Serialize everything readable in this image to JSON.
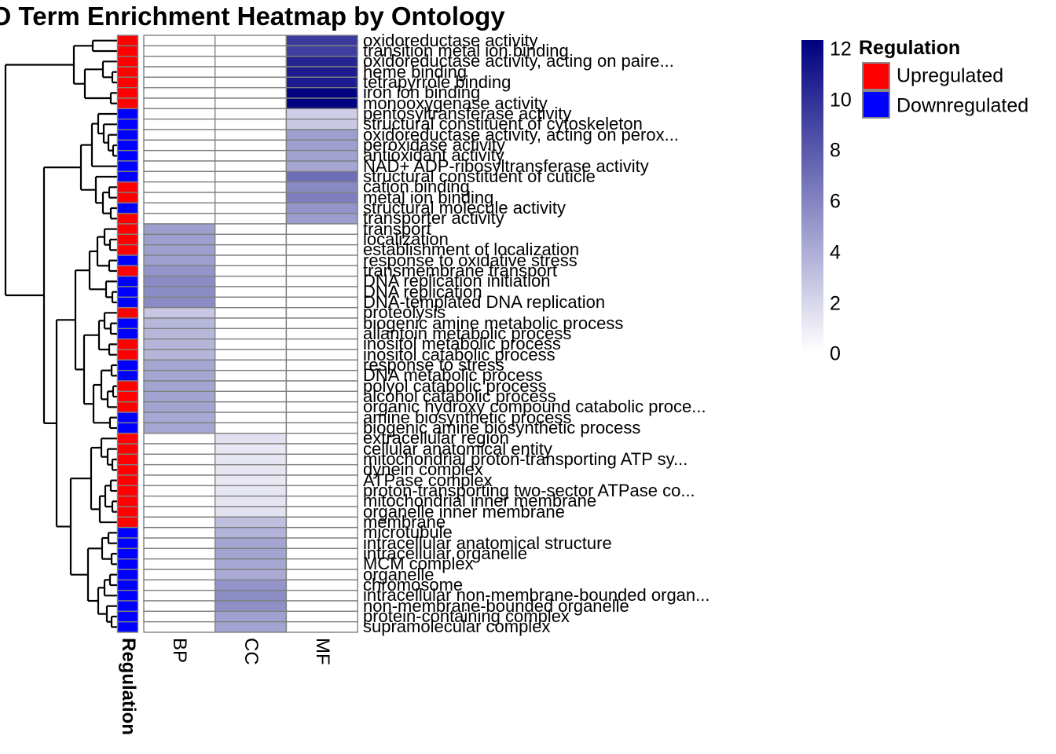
{
  "title": "GO Term Enrichment Heatmap by Ontology",
  "colors": {
    "heat_low": "#FFFFFF",
    "heat_high": "#000080",
    "upregulated": "#FF0000",
    "downregulated": "#0000FF",
    "cell_border": "#808080",
    "dendrogram_line": "#000000"
  },
  "annotation_column_label": "Regulation",
  "legend": {
    "colorbar_ticks": [
      12,
      10,
      8,
      6,
      4,
      2,
      0
    ],
    "colorbar_max": 12.35,
    "regulation": {
      "title": "Regulation",
      "items": [
        {
          "label": "Upregulated",
          "color": "#FF0000"
        },
        {
          "label": "Downregulated",
          "color": "#0000FF"
        }
      ]
    }
  },
  "chart_data": {
    "type": "heatmap",
    "title": "GO Term Enrichment Heatmap by Ontology",
    "columns": [
      "BP",
      "CC",
      "MF"
    ],
    "value_scale": {
      "range": [
        0,
        12.35
      ],
      "low_color": "#FFFFFF",
      "high_color": "#000080"
    },
    "legend_position": "right",
    "rows": [
      {
        "term": "oxidoreductase activity",
        "regulation": "Upregulated",
        "ontology": "MF",
        "value": 9.5
      },
      {
        "term": "transition metal ion binding",
        "regulation": "Upregulated",
        "ontology": "MF",
        "value": 9.3
      },
      {
        "term": "oxidoreductase activity, acting on paire...",
        "regulation": "Upregulated",
        "ontology": "MF",
        "value": 10.6
      },
      {
        "term": "heme binding",
        "regulation": "Upregulated",
        "ontology": "MF",
        "value": 11.0
      },
      {
        "term": "tetrapyrrole binding",
        "regulation": "Upregulated",
        "ontology": "MF",
        "value": 11.0
      },
      {
        "term": "iron ion binding",
        "regulation": "Upregulated",
        "ontology": "MF",
        "value": 12.2
      },
      {
        "term": "monooxygenase activity",
        "regulation": "Upregulated",
        "ontology": "MF",
        "value": 12.2
      },
      {
        "term": "pentosyltransferase activity",
        "regulation": "Downregulated",
        "ontology": "MF",
        "value": 2.4
      },
      {
        "term": "structural constituent of cytoskeleton",
        "regulation": "Downregulated",
        "ontology": "MF",
        "value": 2.6
      },
      {
        "term": "oxidoreductase activity, acting on perox...",
        "regulation": "Downregulated",
        "ontology": "MF",
        "value": 4.7
      },
      {
        "term": "peroxidase activity",
        "regulation": "Downregulated",
        "ontology": "MF",
        "value": 4.7
      },
      {
        "term": "antioxidant activity",
        "regulation": "Downregulated",
        "ontology": "MF",
        "value": 4.5
      },
      {
        "term": "NAD+ ADP-ribosyltransferase activity",
        "regulation": "Downregulated",
        "ontology": "MF",
        "value": 4.3
      },
      {
        "term": "structural constituent of cuticle",
        "regulation": "Downregulated",
        "ontology": "MF",
        "value": 7.0
      },
      {
        "term": "cation binding",
        "regulation": "Upregulated",
        "ontology": "MF",
        "value": 5.7
      },
      {
        "term": "metal ion binding",
        "regulation": "Upregulated",
        "ontology": "MF",
        "value": 6.2
      },
      {
        "term": "structural molecule activity",
        "regulation": "Downregulated",
        "ontology": "MF",
        "value": 5.2
      },
      {
        "term": "transporter activity",
        "regulation": "Upregulated",
        "ontology": "MF",
        "value": 4.8
      },
      {
        "term": "transport",
        "regulation": "Upregulated",
        "ontology": "BP",
        "value": 4.7
      },
      {
        "term": "localization",
        "regulation": "Upregulated",
        "ontology": "BP",
        "value": 4.7
      },
      {
        "term": "establishment of localization",
        "regulation": "Upregulated",
        "ontology": "BP",
        "value": 4.7
      },
      {
        "term": "response to oxidative stress",
        "regulation": "Downregulated",
        "ontology": "BP",
        "value": 4.7
      },
      {
        "term": "transmembrane transport",
        "regulation": "Upregulated",
        "ontology": "BP",
        "value": 5.2
      },
      {
        "term": "DNA replication initiation",
        "regulation": "Downregulated",
        "ontology": "BP",
        "value": 5.6
      },
      {
        "term": "DNA replication",
        "regulation": "Downregulated",
        "ontology": "BP",
        "value": 5.6
      },
      {
        "term": "DNA-templated DNA replication",
        "regulation": "Downregulated",
        "ontology": "BP",
        "value": 5.6
      },
      {
        "term": "proteolysis",
        "regulation": "Upregulated",
        "ontology": "BP",
        "value": 2.7
      },
      {
        "term": "biogenic amine metabolic process",
        "regulation": "Downregulated",
        "ontology": "BP",
        "value": 3.5
      },
      {
        "term": "allantoin metabolic process",
        "regulation": "Downregulated",
        "ontology": "BP",
        "value": 3.5
      },
      {
        "term": "inositol metabolic process",
        "regulation": "Upregulated",
        "ontology": "BP",
        "value": 3.6
      },
      {
        "term": "inositol catabolic process",
        "regulation": "Upregulated",
        "ontology": "BP",
        "value": 3.6
      },
      {
        "term": "response to stress",
        "regulation": "Downregulated",
        "ontology": "BP",
        "value": 4.3
      },
      {
        "term": "DNA metabolic process",
        "regulation": "Downregulated",
        "ontology": "BP",
        "value": 4.3
      },
      {
        "term": "polyol catabolic process",
        "regulation": "Upregulated",
        "ontology": "BP",
        "value": 4.4
      },
      {
        "term": "alcohol catabolic process",
        "regulation": "Upregulated",
        "ontology": "BP",
        "value": 4.4
      },
      {
        "term": "organic hydroxy compound catabolic proce...",
        "regulation": "Upregulated",
        "ontology": "BP",
        "value": 4.4
      },
      {
        "term": "amine biosynthetic process",
        "regulation": "Downregulated",
        "ontology": "BP",
        "value": 4.2
      },
      {
        "term": "biogenic amine biosynthetic process",
        "regulation": "Downregulated",
        "ontology": "BP",
        "value": 4.3
      },
      {
        "term": "extracellular region",
        "regulation": "Upregulated",
        "ontology": "CC",
        "value": 1.5
      },
      {
        "term": "cellular anatomical entity",
        "regulation": "Upregulated",
        "ontology": "CC",
        "value": 1.1
      },
      {
        "term": "mitochondrial proton-transporting ATP sy...",
        "regulation": "Upregulated",
        "ontology": "CC",
        "value": 1.2
      },
      {
        "term": "dynein complex",
        "regulation": "Upregulated",
        "ontology": "CC",
        "value": 1.2
      },
      {
        "term": "ATPase complex",
        "regulation": "Upregulated",
        "ontology": "CC",
        "value": 1.1
      },
      {
        "term": "proton-transporting two-sector ATPase co...",
        "regulation": "Upregulated",
        "ontology": "CC",
        "value": 1.2
      },
      {
        "term": "mitochondrial inner membrane",
        "regulation": "Upregulated",
        "ontology": "CC",
        "value": 1.2
      },
      {
        "term": "organelle inner membrane",
        "regulation": "Upregulated",
        "ontology": "CC",
        "value": 1.4
      },
      {
        "term": "membrane",
        "regulation": "Upregulated",
        "ontology": "CC",
        "value": 3.1
      },
      {
        "term": "microtubule",
        "regulation": "Downregulated",
        "ontology": "CC",
        "value": 3.7
      },
      {
        "term": "intracellular anatomical structure",
        "regulation": "Downregulated",
        "ontology": "CC",
        "value": 4.4
      },
      {
        "term": "intracellular organelle",
        "regulation": "Downregulated",
        "ontology": "CC",
        "value": 4.4
      },
      {
        "term": "MCM complex",
        "regulation": "Downregulated",
        "ontology": "CC",
        "value": 4.3
      },
      {
        "term": "organelle",
        "regulation": "Downregulated",
        "ontology": "CC",
        "value": 4.1
      },
      {
        "term": "chromosome",
        "regulation": "Downregulated",
        "ontology": "CC",
        "value": 5.2
      },
      {
        "term": "intracellular non-membrane-bounded organ...",
        "regulation": "Downregulated",
        "ontology": "CC",
        "value": 5.5
      },
      {
        "term": "non-membrane-bounded organelle",
        "regulation": "Downregulated",
        "ontology": "CC",
        "value": 5.4
      },
      {
        "term": "protein-containing complex",
        "regulation": "Downregulated",
        "ontology": "CC",
        "value": 4.6
      },
      {
        "term": "supramolecular complex",
        "regulation": "Downregulated",
        "ontology": "CC",
        "value": 4.4
      }
    ],
    "dendrogram": [
      [
        [
          0,
          1,
          118
        ],
        [
          [
            2,
            [
              3,
              4,
              143
            ],
            131
          ],
          [
            5,
            6,
            141
          ],
          108
        ],
        94
      ],
      [
        [
          [
            [
              7,
              [
                8,
                [
                  9,
                  [
                    10,
                    11,
                    144
                  ],
                  138
                ],
                132
              ],
              125
            ],
            12,
            117
          ],
          [
            13,
            [
              [
                14,
                15,
                139
              ],
              [
                16,
                17,
                141
              ],
              131
            ],
            122
          ],
          103
        ],
        [
          [
            [
              [
                [
                  18,
                  [
                    19,
                    20,
                    140
                  ],
                  133
                ],
                [
                  21,
                  22,
                  139
                ],
                124
              ],
              [
                23,
                [
                  24,
                  25,
                  143
                ],
                135
              ],
              114
            ],
            [
              [
                [
                  26,
                  [
                    27,
                    28,
                    141
                  ],
                  133
                ],
                [
                  29,
                  30,
                  139
                ],
                126
              ],
              [
                [
                  [
                    31,
                    32,
                    142
                  ],
                  [
                    [
                      33,
                      34,
                      144
                    ],
                    35,
                    137
                  ],
                  129
                ],
                [
                  36,
                  37,
                  140
                ],
                119
              ],
              107
            ],
            96
          ],
          [
            [
              [
                38,
                [
                  39,
                  [
                    40,
                    41,
                    143
                  ],
                  137
                ],
                129
              ],
              [
                [
                  [
                    42,
                    43,
                    141
                  ],
                  [
                    44,
                    45,
                    143
                  ],
                  134
                ],
                46,
                127
              ],
              116
            ],
            [
              [
                [
                  47,
                  48,
                  138
                ],
                [
                  49,
                  50,
                  142
                ],
                130
              ],
              [
                [
                  [
                    51,
                    52,
                    140
                  ],
                  53,
                  133
                ],
                [
                  54,
                  [
                    55,
                    56,
                    142
                  ],
                  136
                ],
                125
              ],
              112
            ],
            90
          ],
          72
        ],
        56
      ],
      7
    ]
  }
}
